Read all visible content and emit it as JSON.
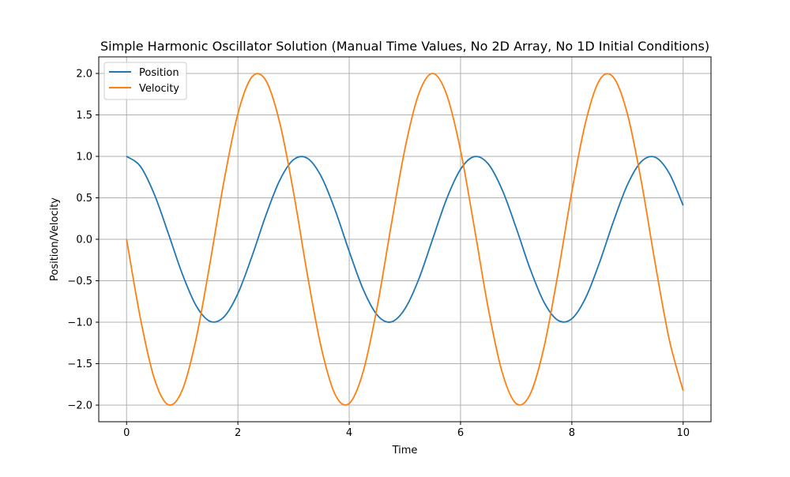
{
  "chart_data": {
    "type": "line",
    "title": "Simple Harmonic Oscillator Solution (Manual Time Values, No 2D Array, No 1D Initial Conditions)",
    "xlabel": "Time",
    "ylabel": "Position/Velocity",
    "xlim": [
      -0.5,
      10.5
    ],
    "ylim": [
      -2.2,
      2.2
    ],
    "xticks": [
      0,
      2,
      4,
      6,
      8,
      10
    ],
    "xtick_labels": [
      "0",
      "2",
      "4",
      "6",
      "8",
      "10"
    ],
    "yticks": [
      -2.0,
      -1.5,
      -1.0,
      -0.5,
      0.0,
      0.5,
      1.0,
      1.5,
      2.0
    ],
    "ytick_labels": [
      "−2.0",
      "−1.5",
      "−1.0",
      "−0.5",
      "0.0",
      "0.5",
      "1.0",
      "1.5",
      "2.0"
    ],
    "grid": true,
    "legend_position": "top-left",
    "x": [
      0.0,
      0.25,
      0.5,
      0.75,
      1.0,
      1.25,
      1.5,
      1.75,
      2.0,
      2.25,
      2.5,
      2.75,
      3.0,
      3.25,
      3.5,
      3.75,
      4.0,
      4.25,
      4.5,
      4.75,
      5.0,
      5.25,
      5.5,
      5.75,
      6.0,
      6.25,
      6.5,
      6.75,
      7.0,
      7.25,
      7.5,
      7.75,
      8.0,
      8.25,
      8.5,
      8.75,
      9.0,
      9.25,
      9.5,
      9.75,
      10.0
    ],
    "series": [
      {
        "name": "Position",
        "color": "#1f77b4",
        "values": [
          1.0,
          0.878,
          0.54,
          0.071,
          -0.416,
          -0.801,
          -0.99,
          -0.936,
          -0.654,
          -0.211,
          0.284,
          0.709,
          0.96,
          0.976,
          0.754,
          0.347,
          -0.146,
          -0.602,
          -0.911,
          -0.997,
          -0.839,
          -0.48,
          0.004,
          0.487,
          0.844,
          0.997,
          0.907,
          0.594,
          0.137,
          -0.356,
          -0.759,
          -0.977,
          -0.958,
          -0.703,
          -0.275,
          0.22,
          0.66,
          0.938,
          0.989,
          0.796,
          0.408
        ]
      },
      {
        "name": "Velocity",
        "color": "#ff7f0e",
        "values": [
          0.0,
          -0.959,
          -1.683,
          -1.995,
          -1.819,
          -1.197,
          -0.282,
          0.701,
          1.514,
          1.956,
          1.918,
          1.411,
          0.565,
          -0.433,
          -1.314,
          -1.876,
          -1.979,
          -1.597,
          -0.825,
          0.153,
          1.088,
          1.755,
          2.0,
          1.746,
          1.073,
          0.134,
          -0.841,
          -1.608,
          -1.981,
          -1.869,
          -1.3,
          -0.417,
          0.575,
          1.42,
          1.923,
          1.951,
          1.507,
          0.691,
          -0.301,
          -1.209,
          -1.826
        ]
      }
    ]
  }
}
